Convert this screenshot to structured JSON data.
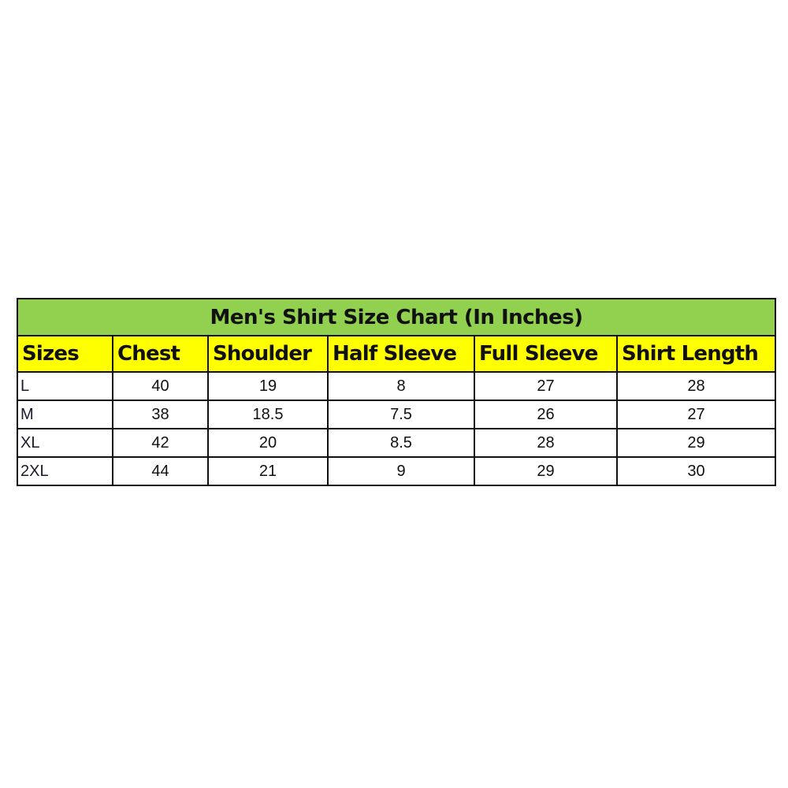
{
  "title": "Men's Shirt Size Chart (In Inches)",
  "headers": [
    "Sizes",
    "Chest",
    "Shoulder",
    "Half Sleeve",
    "Full Sleeve",
    "Shirt Length"
  ],
  "rows": [
    [
      "L",
      "40",
      "19",
      "8",
      "27",
      "28"
    ],
    [
      "M",
      "38",
      "18.5",
      "7.5",
      "26",
      "27"
    ],
    [
      "XL",
      "42",
      "20",
      "8.5",
      "28",
      "29"
    ],
    [
      "2XL",
      "44",
      "21",
      "9",
      "29",
      "30"
    ]
  ],
  "colors": {
    "title_bg": "#92d050",
    "header_bg": "#ffff00"
  }
}
